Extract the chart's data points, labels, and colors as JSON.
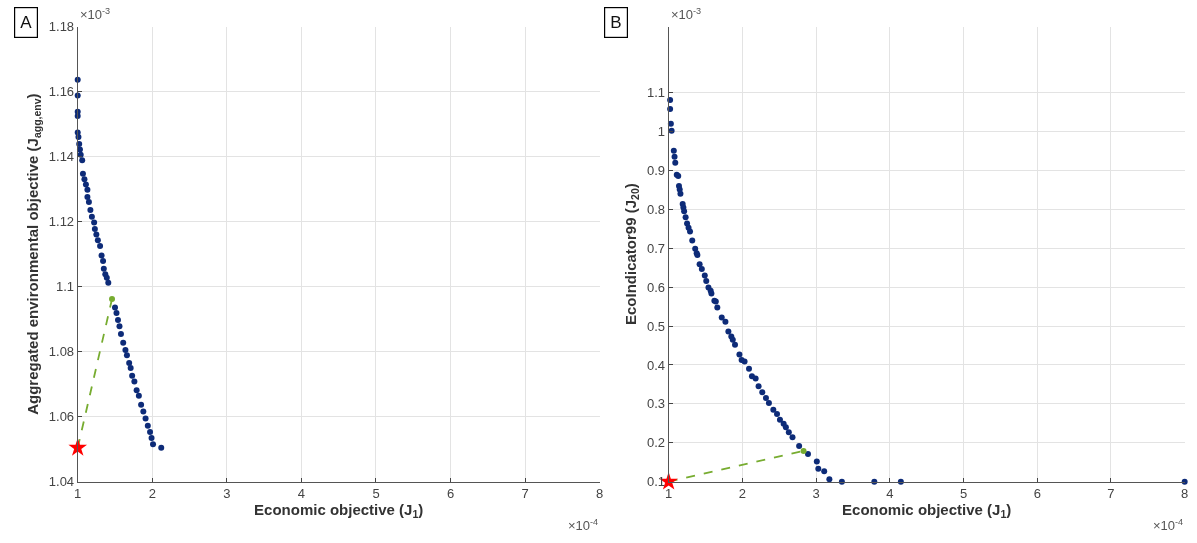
{
  "chart_data": [
    {
      "type": "scatter",
      "xlabel": "Economic objective (J$_{1}$)",
      "ylabel": "Aggregated environmental objective (J$_{agg,env}$)",
      "annotations": [
        "A",
        "×10$^{-3}$",
        "×10$^{-4}$"
      ],
      "xlim": [
        1,
        8
      ],
      "xticks": [
        1,
        2,
        3,
        4,
        5,
        6,
        7,
        8
      ],
      "ylim": [
        1.04,
        1.18
      ],
      "yticks": [
        1.04,
        1.06,
        1.08,
        1.1,
        1.12,
        1.14,
        1.16,
        1.18
      ],
      "grid": true,
      "series": [
        {
          "marker": "circle",
          "color": "#0d2b78",
          "x": [
            1.0,
            1.0,
            1.0,
            1.0,
            1.0,
            1.01,
            1.02,
            1.03,
            1.04,
            1.06,
            1.07,
            1.09,
            1.11,
            1.13,
            1.13,
            1.15,
            1.17,
            1.19,
            1.22,
            1.23,
            1.25,
            1.27,
            1.3,
            1.32,
            1.34,
            1.35,
            1.37,
            1.39,
            1.41,
            1.5,
            1.52,
            1.54,
            1.56,
            1.58,
            1.61,
            1.64,
            1.66,
            1.69,
            1.71,
            1.73,
            1.76,
            1.79,
            1.82,
            1.85,
            1.88,
            1.91,
            1.94,
            1.97,
            1.99,
            2.01,
            2.12
          ],
          "values": [
            1.1636,
            1.1588,
            1.1538,
            1.1525,
            1.1474,
            1.146,
            1.1439,
            1.1422,
            1.1406,
            1.1389,
            1.1347,
            1.133,
            1.1314,
            1.1298,
            1.1276,
            1.126,
            1.1236,
            1.1215,
            1.1197,
            1.1177,
            1.116,
            1.1143,
            1.1125,
            1.1096,
            1.1079,
            1.1055,
            1.1038,
            1.1027,
            1.1012,
            1.0936,
            1.0919,
            1.0897,
            1.0878,
            1.0854,
            1.0827,
            1.0805,
            1.0789,
            1.0765,
            1.075,
            1.0726,
            1.0708,
            1.0681,
            1.0664,
            1.0637,
            1.0616,
            1.0594,
            1.0572,
            1.0553,
            1.0534,
            1.0515,
            1.0504
          ]
        },
        {
          "type": "line",
          "line_style": "dashed",
          "marker": "none",
          "color": "#77ac30",
          "x": [
            1.0,
            1.46
          ],
          "values": [
            1.0504,
            1.0962
          ]
        },
        {
          "marker": "circle",
          "color": "#77ac30",
          "x": [
            1.46
          ],
          "values": [
            1.0962
          ]
        },
        {
          "marker": "star",
          "color": "#ff0000",
          "x": [
            1.0
          ],
          "values": [
            1.0504
          ]
        }
      ]
    },
    {
      "type": "scatter",
      "xlabel": "Economic objective (J$_{1}$)",
      "ylabel": "EcoIndicator99 (J$_{20}$)",
      "annotations": [
        "B",
        "×10$^{-3}$",
        "×10$^{-4}$"
      ],
      "xlim": [
        1,
        8
      ],
      "xticks": [
        1,
        2,
        3,
        4,
        5,
        6,
        7,
        8
      ],
      "ylim": [
        0.1,
        1.27
      ],
      "yticks": [
        0.1,
        0.2,
        0.3,
        0.4,
        0.5,
        0.6,
        0.7,
        0.8,
        0.9,
        1,
        1.1
      ],
      "grid": true,
      "series": [
        {
          "marker": "circle",
          "color": "#0d2b78",
          "x": [
            1.02,
            1.02,
            1.03,
            1.04,
            1.07,
            1.08,
            1.09,
            1.11,
            1.13,
            1.14,
            1.15,
            1.16,
            1.19,
            1.2,
            1.21,
            1.23,
            1.25,
            1.27,
            1.29,
            1.32,
            1.36,
            1.38,
            1.39,
            1.42,
            1.45,
            1.49,
            1.51,
            1.54,
            1.57,
            1.58,
            1.62,
            1.64,
            1.66,
            1.72,
            1.77,
            1.81,
            1.85,
            1.87,
            1.9,
            1.96,
            1.99,
            2.03,
            2.09,
            2.13,
            2.18,
            2.22,
            2.27,
            2.32,
            2.36,
            2.42,
            2.47,
            2.51,
            2.56,
            2.59,
            2.63,
            2.68,
            2.77,
            2.89,
            3.01,
            3.03,
            3.11,
            3.18,
            3.35,
            3.79,
            4.15,
            8.0
          ],
          "values": [
            1.081,
            1.058,
            1.02,
            1.002,
            0.951,
            0.935,
            0.92,
            0.889,
            0.886,
            0.86,
            0.851,
            0.84,
            0.814,
            0.805,
            0.795,
            0.78,
            0.764,
            0.753,
            0.743,
            0.72,
            0.699,
            0.687,
            0.683,
            0.659,
            0.647,
            0.63,
            0.616,
            0.599,
            0.591,
            0.584,
            0.565,
            0.563,
            0.548,
            0.522,
            0.511,
            0.486,
            0.473,
            0.465,
            0.452,
            0.427,
            0.413,
            0.409,
            0.39,
            0.371,
            0.365,
            0.345,
            0.33,
            0.315,
            0.302,
            0.285,
            0.274,
            0.259,
            0.249,
            0.24,
            0.227,
            0.214,
            0.192,
            0.171,
            0.152,
            0.133,
            0.127,
            0.106,
            0.1,
            0.1,
            0.1,
            0.1
          ]
        },
        {
          "type": "line",
          "line_style": "dashed",
          "marker": "none",
          "color": "#77ac30",
          "x": [
            1.0,
            2.83
          ],
          "values": [
            0.1,
            0.179
          ]
        },
        {
          "marker": "circle",
          "color": "#77ac30",
          "x": [
            2.83
          ],
          "values": [
            0.179
          ]
        },
        {
          "marker": "star",
          "color": "#ff0000",
          "x": [
            1.0
          ],
          "values": [
            0.1
          ]
        }
      ]
    }
  ]
}
